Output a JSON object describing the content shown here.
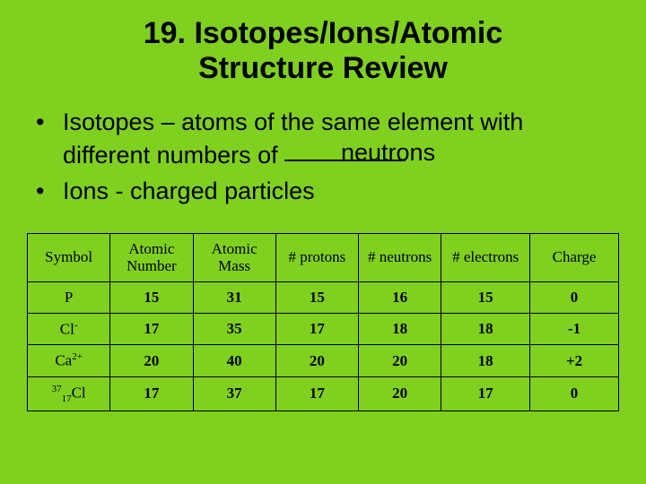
{
  "title_line1": "19. Isotopes/Ions/Atomic",
  "title_line2": "Structure Review",
  "bullet1_part1": "Isotopes – atoms of the same element with",
  "bullet1_part2_prefix": "different numbers of ",
  "bullet1_answer": "neutrons",
  "bullet2_prefix": "Ions - ",
  "bullet2_answer": "charged particles",
  "table": {
    "columns": [
      "Symbol",
      "Atomic Number",
      "Atomic Mass",
      "# protons",
      "# neutrons",
      "# electrons",
      "Charge"
    ],
    "col_widths_pct": [
      14,
      14,
      14,
      14,
      14,
      15,
      15
    ],
    "rows": [
      {
        "symbol_html": "P",
        "atomic_number": "15",
        "atomic_mass": "31",
        "protons": "15",
        "neutrons": "16",
        "electrons": "15",
        "charge": "0"
      },
      {
        "symbol_html": "Cl<span class='sup'>-</span>",
        "atomic_number": "17",
        "atomic_mass": "35",
        "protons": "17",
        "neutrons": "18",
        "electrons": "18",
        "charge": "-1"
      },
      {
        "symbol_html": "Ca<span class='sup'>2+</span>",
        "atomic_number": "20",
        "atomic_mass": "40",
        "protons": "20",
        "neutrons": "20",
        "electrons": "18",
        "charge": "+2"
      },
      {
        "symbol_html": "<span class='presup'>37</span><span class='presub'>17</span>Cl",
        "atomic_number": "17",
        "atomic_mass": "37",
        "protons": "17",
        "neutrons": "20",
        "electrons": "17",
        "charge": "0"
      }
    ]
  },
  "colors": {
    "background": "#80d020",
    "text": "#000000",
    "border": "#000000"
  }
}
